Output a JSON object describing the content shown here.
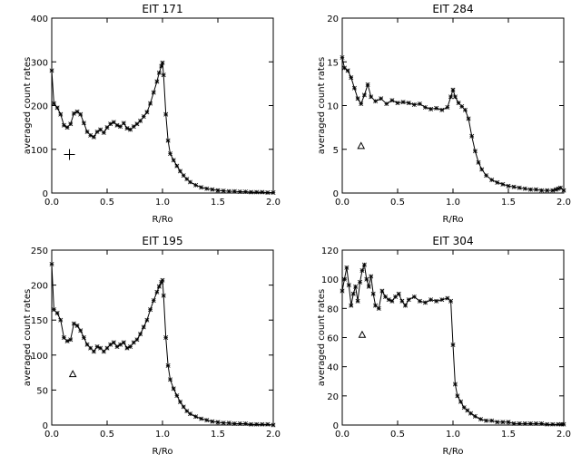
{
  "chart_data": [
    {
      "type": "line",
      "title": "EIT 171",
      "xlabel": "R/Ro",
      "ylabel": "averaged count rates",
      "xlim": [
        0,
        2
      ],
      "ylim": [
        0,
        400
      ],
      "xticks": [
        0,
        0.5,
        1,
        1.5,
        2
      ],
      "xtick_labels": [
        "0.0",
        "0.5",
        "1.0",
        "1.5",
        "2.0"
      ],
      "yticks": [
        0,
        100,
        200,
        300,
        400
      ],
      "ytick_labels": [
        "0",
        "100",
        "200",
        "300",
        "400"
      ],
      "grid": false,
      "marker": "star",
      "annotation_symbol": "plus",
      "annotation_point": [
        0.16,
        88
      ],
      "x": [
        0.0,
        0.02,
        0.05,
        0.08,
        0.11,
        0.14,
        0.17,
        0.2,
        0.23,
        0.26,
        0.29,
        0.32,
        0.35,
        0.38,
        0.41,
        0.44,
        0.47,
        0.5,
        0.53,
        0.56,
        0.59,
        0.62,
        0.65,
        0.68,
        0.71,
        0.74,
        0.77,
        0.8,
        0.83,
        0.86,
        0.89,
        0.92,
        0.95,
        0.97,
        0.99,
        1.0,
        1.01,
        1.03,
        1.05,
        1.07,
        1.1,
        1.13,
        1.16,
        1.19,
        1.22,
        1.25,
        1.3,
        1.35,
        1.4,
        1.45,
        1.5,
        1.55,
        1.6,
        1.65,
        1.7,
        1.75,
        1.8,
        1.85,
        1.9,
        1.95,
        2.0
      ],
      "y": [
        280,
        205,
        195,
        180,
        155,
        150,
        158,
        182,
        186,
        180,
        160,
        140,
        132,
        128,
        140,
        145,
        138,
        150,
        158,
        162,
        155,
        152,
        160,
        148,
        145,
        152,
        158,
        165,
        175,
        185,
        205,
        230,
        255,
        275,
        290,
        298,
        270,
        180,
        120,
        90,
        75,
        62,
        50,
        40,
        32,
        25,
        18,
        13,
        10,
        8,
        6,
        5,
        4,
        4,
        3,
        3,
        2,
        2,
        2,
        1,
        1
      ]
    },
    {
      "type": "line",
      "title": "EIT 284",
      "xlabel": "R/Ro",
      "ylabel": "averaged count rates",
      "xlim": [
        0,
        2
      ],
      "ylim": [
        0,
        20
      ],
      "xticks": [
        0,
        0.5,
        1,
        1.5,
        2
      ],
      "xtick_labels": [
        "0.0",
        "0.5",
        "1.0",
        "1.5",
        "2.0"
      ],
      "yticks": [
        0,
        5,
        10,
        15,
        20
      ],
      "ytick_labels": [
        "0",
        "5",
        "10",
        "15",
        "20"
      ],
      "grid": false,
      "marker": "star",
      "annotation_symbol": "triangle",
      "annotation_point": [
        0.17,
        5.4
      ],
      "x": [
        0.0,
        0.02,
        0.05,
        0.08,
        0.11,
        0.14,
        0.17,
        0.2,
        0.23,
        0.26,
        0.3,
        0.35,
        0.4,
        0.45,
        0.5,
        0.55,
        0.6,
        0.65,
        0.7,
        0.75,
        0.8,
        0.85,
        0.9,
        0.95,
        0.98,
        1.0,
        1.02,
        1.05,
        1.08,
        1.11,
        1.14,
        1.17,
        1.2,
        1.23,
        1.26,
        1.3,
        1.35,
        1.4,
        1.45,
        1.5,
        1.55,
        1.6,
        1.65,
        1.7,
        1.75,
        1.8,
        1.85,
        1.9,
        1.93,
        1.95,
        1.97,
        2.0
      ],
      "y": [
        15.5,
        14.3,
        14.0,
        13.2,
        12.0,
        10.8,
        10.2,
        11.2,
        12.4,
        11.0,
        10.5,
        10.8,
        10.2,
        10.6,
        10.3,
        10.4,
        10.3,
        10.1,
        10.2,
        9.8,
        9.6,
        9.7,
        9.5,
        9.8,
        11.0,
        11.8,
        11.0,
        10.3,
        9.9,
        9.5,
        8.5,
        6.5,
        4.8,
        3.5,
        2.7,
        2.0,
        1.5,
        1.2,
        1.0,
        0.8,
        0.7,
        0.6,
        0.5,
        0.4,
        0.4,
        0.3,
        0.3,
        0.3,
        0.4,
        0.5,
        0.6,
        0.3
      ]
    },
    {
      "type": "line",
      "title": "EIT 195",
      "xlabel": "R/Ro",
      "ylabel": "averaged count rates",
      "xlim": [
        0,
        2
      ],
      "ylim": [
        0,
        250
      ],
      "xticks": [
        0,
        0.5,
        1,
        1.5,
        2
      ],
      "xtick_labels": [
        "0.0",
        "0.5",
        "1.0",
        "1.5",
        "2.0"
      ],
      "yticks": [
        0,
        50,
        100,
        150,
        200,
        250
      ],
      "ytick_labels": [
        "0",
        "50",
        "100",
        "150",
        "200",
        "250"
      ],
      "grid": false,
      "marker": "star",
      "annotation_symbol": "triangle",
      "annotation_point": [
        0.19,
        73
      ],
      "x": [
        0.0,
        0.02,
        0.05,
        0.08,
        0.11,
        0.14,
        0.17,
        0.2,
        0.23,
        0.26,
        0.29,
        0.32,
        0.35,
        0.38,
        0.41,
        0.44,
        0.47,
        0.5,
        0.53,
        0.56,
        0.59,
        0.62,
        0.65,
        0.68,
        0.71,
        0.74,
        0.77,
        0.8,
        0.83,
        0.86,
        0.89,
        0.92,
        0.95,
        0.97,
        0.99,
        1.0,
        1.01,
        1.03,
        1.05,
        1.07,
        1.1,
        1.13,
        1.16,
        1.19,
        1.22,
        1.25,
        1.3,
        1.35,
        1.4,
        1.45,
        1.5,
        1.55,
        1.6,
        1.65,
        1.7,
        1.75,
        1.8,
        1.85,
        1.9,
        1.95,
        2.0
      ],
      "y": [
        230,
        165,
        160,
        150,
        125,
        120,
        122,
        145,
        142,
        135,
        125,
        115,
        110,
        105,
        112,
        110,
        105,
        110,
        115,
        118,
        112,
        115,
        118,
        110,
        112,
        118,
        122,
        130,
        140,
        150,
        165,
        178,
        190,
        198,
        204,
        207,
        185,
        125,
        85,
        65,
        52,
        42,
        33,
        26,
        20,
        16,
        12,
        9,
        7,
        5,
        4,
        3,
        3,
        2,
        2,
        2,
        1,
        1,
        1,
        1,
        0
      ]
    },
    {
      "type": "line",
      "title": "EIT 304",
      "xlabel": "R/Ro",
      "ylabel": "averaged count rates",
      "xlim": [
        0,
        2
      ],
      "ylim": [
        0,
        120
      ],
      "xticks": [
        0,
        0.5,
        1,
        1.5,
        2
      ],
      "xtick_labels": [
        "0.0",
        "0.5",
        "1.0",
        "1.5",
        "2.0"
      ],
      "yticks": [
        0,
        20,
        40,
        60,
        80,
        100,
        120
      ],
      "ytick_labels": [
        "0",
        "20",
        "40",
        "60",
        "80",
        "100",
        "120"
      ],
      "grid": false,
      "marker": "star",
      "annotation_symbol": "triangle",
      "annotation_point": [
        0.18,
        62
      ],
      "x": [
        0.0,
        0.02,
        0.04,
        0.06,
        0.08,
        0.1,
        0.12,
        0.14,
        0.16,
        0.18,
        0.2,
        0.22,
        0.24,
        0.26,
        0.28,
        0.3,
        0.33,
        0.36,
        0.39,
        0.42,
        0.45,
        0.48,
        0.51,
        0.54,
        0.57,
        0.6,
        0.65,
        0.7,
        0.75,
        0.8,
        0.85,
        0.9,
        0.95,
        0.98,
        1.0,
        1.02,
        1.04,
        1.07,
        1.1,
        1.13,
        1.16,
        1.2,
        1.25,
        1.3,
        1.35,
        1.4,
        1.45,
        1.5,
        1.55,
        1.6,
        1.65,
        1.7,
        1.75,
        1.8,
        1.85,
        1.9,
        1.95,
        1.98,
        2.0
      ],
      "y": [
        92,
        100,
        108,
        96,
        82,
        90,
        95,
        85,
        98,
        106,
        110,
        100,
        95,
        102,
        90,
        82,
        80,
        92,
        88,
        86,
        85,
        88,
        90,
        85,
        82,
        86,
        88,
        85,
        84,
        86,
        85,
        86,
        87,
        85,
        55,
        28,
        20,
        16,
        12,
        10,
        8,
        6,
        4,
        3,
        3,
        2,
        2,
        2,
        1,
        1,
        1,
        1,
        1,
        1,
        0.5,
        0.5,
        0.5,
        0.5,
        0.5
      ]
    }
  ]
}
